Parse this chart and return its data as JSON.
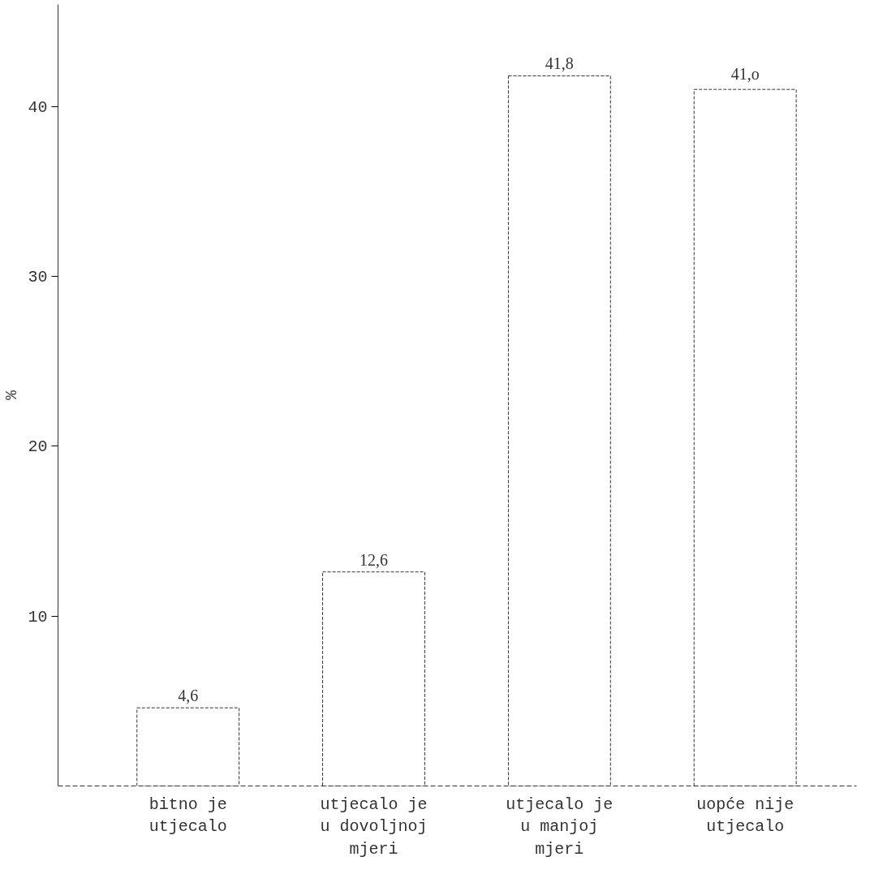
{
  "chart_data": {
    "type": "bar",
    "ylabel": "%",
    "categories": [
      "bitno je\nutjecalo",
      "utjecalo je\nu dovoljnoj\nmjeri",
      "utjecalo je\nu manjoj\nmjeri",
      "uopće nije\nutjecalo"
    ],
    "values": [
      4.6,
      12.6,
      41.8,
      41.0
    ],
    "value_labels": [
      "4,6",
      "12,6",
      "41,8",
      "41,o"
    ],
    "colors": [
      "#ffffff",
      "#ffffff",
      "#ffffff",
      "#ffffff"
    ],
    "ylim": [
      0,
      46
    ],
    "yticks": [
      10,
      20,
      30,
      40
    ],
    "grid": false
  }
}
